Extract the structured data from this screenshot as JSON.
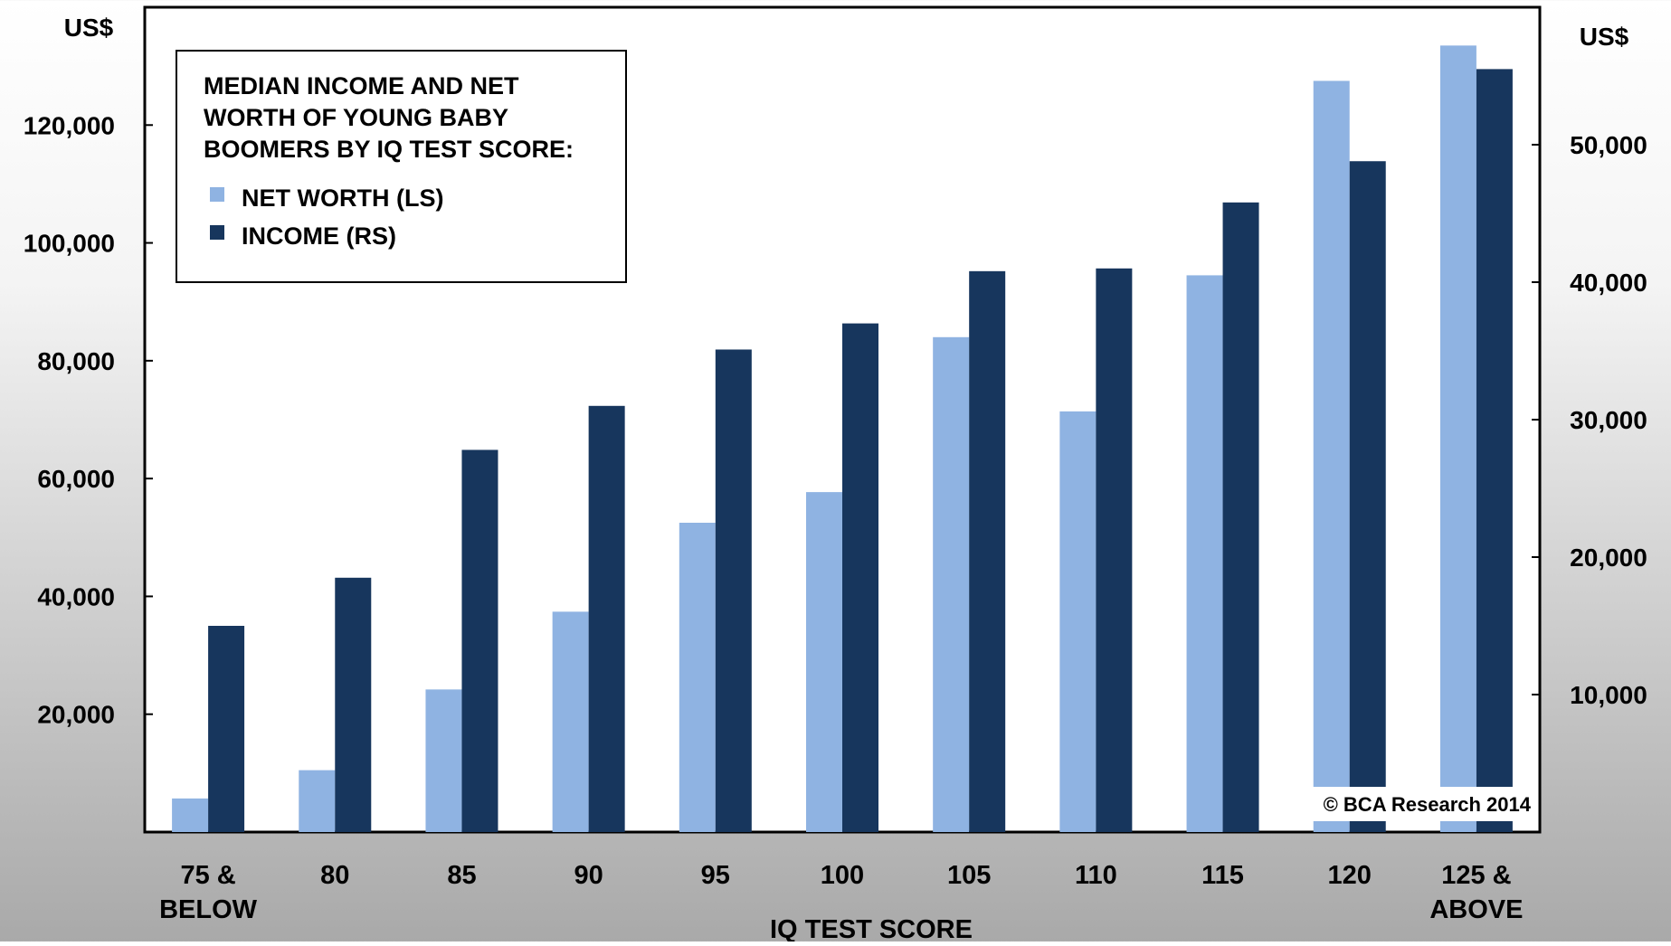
{
  "chart_data": {
    "type": "bar",
    "title": "MEDIAN INCOME AND NET WORTH OF YOUNG BABY BOOMERS BY IQ TEST SCORE:",
    "title_lines": [
      "MEDIAN INCOME AND NET",
      "WORTH OF YOUNG BABY",
      "BOOMERS BY IQ TEST SCORE:"
    ],
    "xlabel": "IQ TEST SCORE",
    "left_axis_unit": "US$",
    "right_axis_unit": "US$",
    "categories": [
      "75 & BELOW",
      "80",
      "85",
      "90",
      "95",
      "100",
      "105",
      "110",
      "115",
      "120",
      "125 & ABOVE"
    ],
    "category_lines": [
      [
        "75 &",
        "BELOW"
      ],
      [
        "80"
      ],
      [
        "85"
      ],
      [
        "90"
      ],
      [
        "95"
      ],
      [
        "100"
      ],
      [
        "105"
      ],
      [
        "110"
      ],
      [
        "115"
      ],
      [
        "120"
      ],
      [
        "125 &",
        "ABOVE"
      ]
    ],
    "left_ylim": [
      0,
      140000
    ],
    "right_ylim": [
      0,
      60000
    ],
    "left_ticks": [
      20000,
      40000,
      60000,
      80000,
      100000,
      120000
    ],
    "left_tick_labels": [
      "20,000",
      "40,000",
      "60,000",
      "80,000",
      "100,000",
      "120,000"
    ],
    "right_ticks": [
      10000,
      20000,
      30000,
      40000,
      50000
    ],
    "right_tick_labels": [
      "10,000",
      "20,000",
      "30,000",
      "40,000",
      "50,000"
    ],
    "series": [
      {
        "name": "NET WORTH (LS)",
        "axis": "left",
        "color": "#8fb3e2",
        "values": [
          5700,
          10500,
          24200,
          37400,
          52500,
          57700,
          84000,
          71400,
          94500,
          127500,
          133500
        ]
      },
      {
        "name": "INCOME (RS)",
        "axis": "right",
        "color": "#17365d",
        "values": [
          15000,
          18500,
          27800,
          31000,
          35100,
          37000,
          40800,
          41000,
          45800,
          48800,
          55500
        ]
      }
    ],
    "grid": false,
    "legend_position": "top-left",
    "source_note": "© BCA Research 2014"
  }
}
